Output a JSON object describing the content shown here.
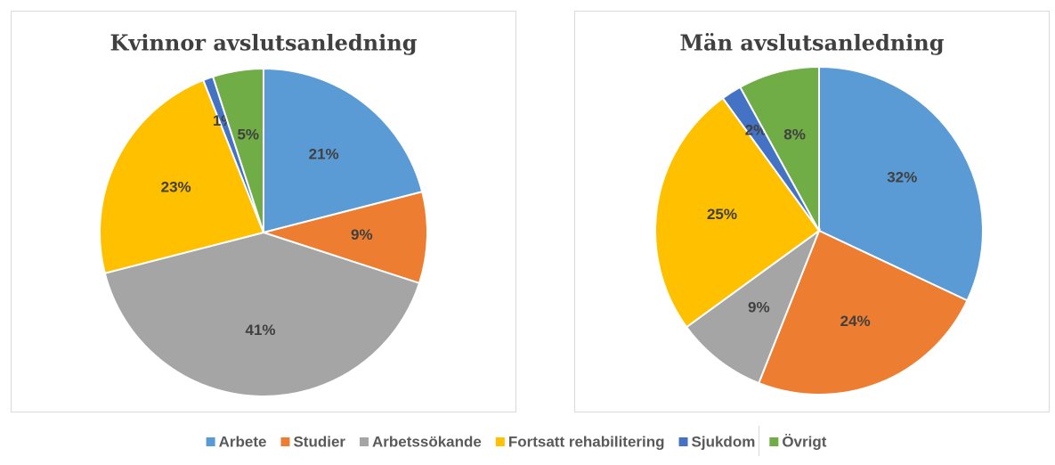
{
  "chart_data": [
    {
      "type": "pie",
      "title": "Kvinnor avslutsanledning",
      "values": [
        21,
        9,
        41,
        23,
        1,
        5
      ],
      "value_labels": [
        "21%",
        "9%",
        "41%",
        "23%",
        "1%",
        "5%"
      ]
    },
    {
      "type": "pie",
      "title": "Män avslutsanledning",
      "values": [
        32,
        24,
        9,
        25,
        2,
        8
      ],
      "value_labels": [
        "32%",
        "24%",
        "9%",
        "25%",
        "2%",
        "8%"
      ]
    }
  ],
  "legend": {
    "labels": [
      "Arbete",
      "Studier",
      "Arbetssökande",
      "Fortsatt rehabilitering",
      "Sjukdom",
      "Övrigt"
    ],
    "colors": [
      "#5b9bd5",
      "#ed7d31",
      "#a5a5a5",
      "#ffc000",
      "#4472c4",
      "#70ad47"
    ]
  }
}
